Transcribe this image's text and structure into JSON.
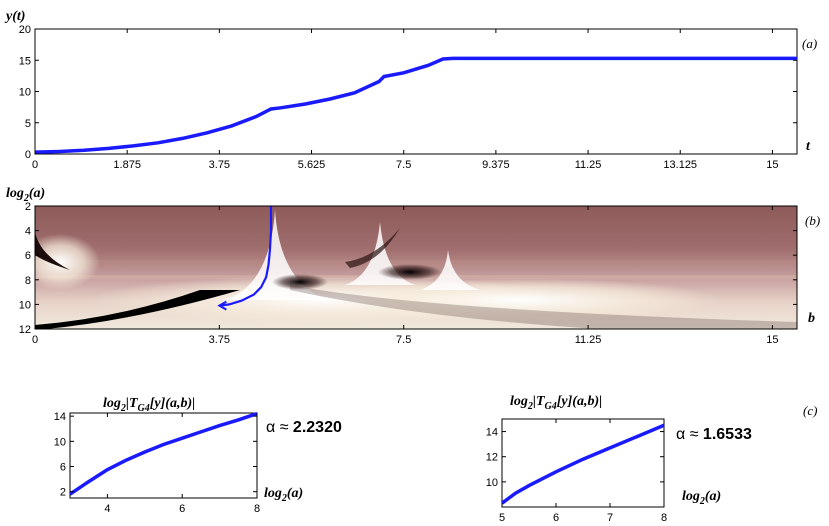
{
  "chart_data": [
    {
      "id": "a",
      "type": "line",
      "panel_label": "(a)",
      "ylabel": "y(t)",
      "xlabel": "t",
      "xlim": [
        0,
        15.5
      ],
      "ylim": [
        0,
        20
      ],
      "xticks": [
        "0",
        "1.875",
        "3.75",
        "5.625",
        "7.5",
        "9.375",
        "11.25",
        "13.125",
        "15"
      ],
      "yticks": [
        "0",
        "5",
        "10",
        "15",
        "20"
      ],
      "line_color": "#1a1aff",
      "series": [
        {
          "x": [
            0,
            0.5,
            1,
            1.5,
            2,
            2.5,
            3,
            3.5,
            4,
            4.5,
            4.8,
            5,
            5.5,
            6,
            6.5,
            7,
            7.1,
            7.5,
            8,
            8.3,
            8.5,
            9,
            10,
            11,
            12,
            13,
            14,
            15,
            15.5
          ],
          "y": [
            0.3,
            0.4,
            0.6,
            0.9,
            1.3,
            1.8,
            2.5,
            3.4,
            4.5,
            6.0,
            7.2,
            7.4,
            8.0,
            8.8,
            9.8,
            11.6,
            12.4,
            13.0,
            14.2,
            15.2,
            15.3,
            15.3,
            15.3,
            15.3,
            15.3,
            15.3,
            15.3,
            15.3,
            15.3
          ]
        }
      ]
    },
    {
      "id": "b",
      "type": "heatmap",
      "panel_label": "(b)",
      "ylabel": "log2(a)",
      "xlabel": "b",
      "xlim": [
        0,
        15.5
      ],
      "ylim": [
        2,
        12
      ],
      "xticks": [
        "0",
        "3.75",
        "7.5",
        "11.25",
        "15"
      ],
      "yticks": [
        "2",
        "4",
        "6",
        "8",
        "10",
        "12"
      ],
      "ridge_color": "#1a1aff",
      "ridge": {
        "x": [
          4.8,
          4.8,
          4.78,
          4.75,
          4.7,
          4.6,
          4.45,
          4.2,
          3.95,
          3.75
        ],
        "y": [
          2,
          4,
          5.5,
          6.8,
          7.8,
          8.6,
          9.2,
          9.7,
          10.0,
          10.1
        ]
      },
      "colormap": "pink"
    },
    {
      "id": "c1",
      "type": "line",
      "panel_label": "(c)",
      "ylabel": "log2|TG4[y](a,b)|",
      "xlabel": "log2(a)",
      "xlim": [
        3,
        8
      ],
      "ylim": [
        1,
        14.5
      ],
      "xticks": [
        "4",
        "6",
        "8"
      ],
      "yticks": [
        "2",
        "6",
        "10",
        "14"
      ],
      "annotation": "α ≈ 2.2320",
      "series": [
        {
          "x": [
            3,
            3.5,
            4,
            4.5,
            5,
            5.5,
            6,
            6.5,
            7,
            7.5,
            8
          ],
          "y": [
            1.6,
            3.6,
            5.5,
            7.0,
            8.3,
            9.5,
            10.5,
            11.5,
            12.5,
            13.4,
            14.4
          ]
        }
      ]
    },
    {
      "id": "c2",
      "type": "line",
      "ylabel": "log2|TG4[y](a,b)|",
      "xlabel": "log2(a)",
      "xlim": [
        5,
        8
      ],
      "ylim": [
        8,
        15
      ],
      "xticks": [
        "5",
        "6",
        "7",
        "8"
      ],
      "yticks": [
        "10",
        "12",
        "14"
      ],
      "annotation": "α ≈ 1.6533",
      "series": [
        {
          "x": [
            5,
            5.25,
            5.5,
            6,
            6.5,
            7,
            7.5,
            8
          ],
          "y": [
            8.3,
            9.1,
            9.7,
            10.8,
            11.8,
            12.7,
            13.6,
            14.5
          ]
        }
      ]
    }
  ],
  "text": {
    "a_ylabel": "y(t)",
    "a_xlabel": "t",
    "a_panel": "(a)",
    "b_ylabel_main": "log",
    "b_ylabel_sub": "2",
    "b_ylabel_tail": "(a)",
    "b_xlabel": "b",
    "b_panel": "(b)",
    "c_panel": "(c)",
    "c_title_main": "log",
    "c_title_sub": "2",
    "c_title_mid": "|T",
    "c_title_sub2": "G4",
    "c_title_tail": "[y](a,b)|",
    "c_xlabel_main": "log",
    "c_xlabel_sub": "2",
    "c_xlabel_tail": "(a)",
    "c1_alpha_prefix": "α ≈ ",
    "c1_alpha_value": "2.2320",
    "c2_alpha_prefix": "α ≈ ",
    "c2_alpha_value": "1.6533"
  }
}
